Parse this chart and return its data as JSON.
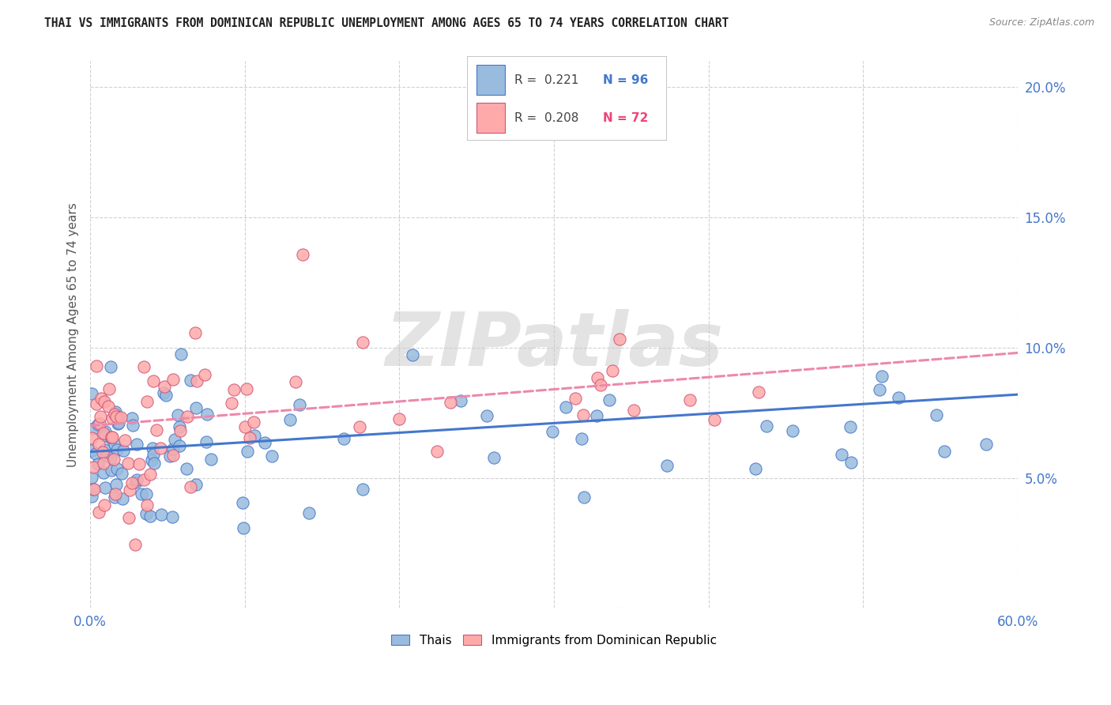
{
  "title": "THAI VS IMMIGRANTS FROM DOMINICAN REPUBLIC UNEMPLOYMENT AMONG AGES 65 TO 74 YEARS CORRELATION CHART",
  "source": "Source: ZipAtlas.com",
  "ylabel": "Unemployment Among Ages 65 to 74 years",
  "xmin": 0.0,
  "xmax": 0.6,
  "ymin": 0.0,
  "ymax": 0.21,
  "xticks": [
    0.0,
    0.1,
    0.2,
    0.3,
    0.4,
    0.5,
    0.6
  ],
  "yticks": [
    0.0,
    0.05,
    0.1,
    0.15,
    0.2
  ],
  "ytick_labels": [
    "",
    "5.0%",
    "10.0%",
    "15.0%",
    "20.0%"
  ],
  "xtick_labels": [
    "0.0%",
    "",
    "",
    "",
    "",
    "",
    "60.0%"
  ],
  "color_thai": "#99BBDD",
  "color_dr": "#FFAAAA",
  "color_trendline_thai": "#4477CC",
  "color_trendline_dr": "#EE88AA",
  "watermark_text": "ZIPatlas",
  "legend_thai_r": "R =  0.221",
  "legend_thai_n": "N = 96",
  "legend_dr_r": "R =  0.208",
  "legend_dr_n": "N = 72",
  "thai_trend_x0": 0.0,
  "thai_trend_x1": 0.6,
  "thai_trend_y0": 0.06,
  "thai_trend_y1": 0.082,
  "dr_trend_x0": 0.0,
  "dr_trend_x1": 0.6,
  "dr_trend_y0": 0.07,
  "dr_trend_y1": 0.098,
  "background_color": "#FFFFFF",
  "grid_color": "#CCCCCC"
}
